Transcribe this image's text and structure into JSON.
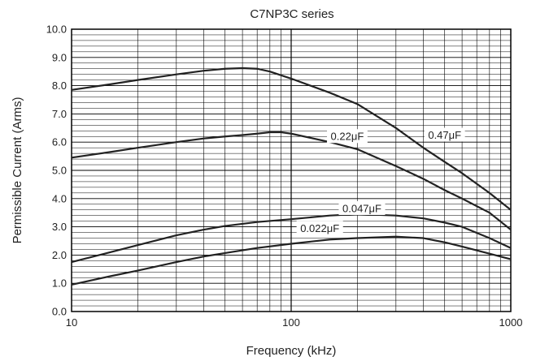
{
  "chart_data": {
    "type": "line",
    "title": "C7NP3C series",
    "xlabel": "Frequency (kHz)",
    "ylabel": "Permissible Current (Arms)",
    "x_scale": "log",
    "xlim": [
      10,
      1000
    ],
    "ylim": [
      0,
      10
    ],
    "grid": true,
    "x_tick_labels": [
      "10",
      "100",
      "1000"
    ],
    "y_tick_labels": [
      "0.0",
      "1.0",
      "2.0",
      "3.0",
      "4.0",
      "5.0",
      "6.0",
      "7.0",
      "8.0",
      "9.0",
      "10.0"
    ],
    "series": [
      {
        "name": "0.47μF",
        "points": [
          [
            10,
            7.85
          ],
          [
            15,
            8.05
          ],
          [
            20,
            8.2
          ],
          [
            30,
            8.4
          ],
          [
            40,
            8.53
          ],
          [
            50,
            8.6
          ],
          [
            60,
            8.62
          ],
          [
            70,
            8.6
          ],
          [
            80,
            8.5
          ],
          [
            100,
            8.25
          ],
          [
            150,
            7.75
          ],
          [
            200,
            7.35
          ],
          [
            300,
            6.5
          ],
          [
            400,
            5.8
          ],
          [
            500,
            5.3
          ],
          [
            600,
            4.9
          ],
          [
            800,
            4.2
          ],
          [
            1000,
            3.6
          ]
        ]
      },
      {
        "name": "0.22μF",
        "points": [
          [
            10,
            5.45
          ],
          [
            15,
            5.65
          ],
          [
            20,
            5.8
          ],
          [
            30,
            6.0
          ],
          [
            40,
            6.13
          ],
          [
            50,
            6.2
          ],
          [
            60,
            6.25
          ],
          [
            70,
            6.3
          ],
          [
            80,
            6.35
          ],
          [
            90,
            6.35
          ],
          [
            100,
            6.3
          ],
          [
            150,
            6.0
          ],
          [
            200,
            5.75
          ],
          [
            300,
            5.15
          ],
          [
            400,
            4.7
          ],
          [
            500,
            4.3
          ],
          [
            600,
            4.0
          ],
          [
            800,
            3.5
          ],
          [
            1000,
            2.9
          ]
        ]
      },
      {
        "name": "0.047μF",
        "points": [
          [
            10,
            1.75
          ],
          [
            15,
            2.1
          ],
          [
            20,
            2.35
          ],
          [
            30,
            2.7
          ],
          [
            40,
            2.9
          ],
          [
            50,
            3.03
          ],
          [
            70,
            3.17
          ],
          [
            100,
            3.27
          ],
          [
            150,
            3.4
          ],
          [
            200,
            3.45
          ],
          [
            300,
            3.4
          ],
          [
            400,
            3.3
          ],
          [
            500,
            3.15
          ],
          [
            600,
            3.0
          ],
          [
            800,
            2.6
          ],
          [
            1000,
            2.25
          ]
        ]
      },
      {
        "name": "0.022μF",
        "points": [
          [
            10,
            0.95
          ],
          [
            15,
            1.25
          ],
          [
            20,
            1.45
          ],
          [
            30,
            1.75
          ],
          [
            40,
            1.95
          ],
          [
            50,
            2.07
          ],
          [
            70,
            2.25
          ],
          [
            100,
            2.4
          ],
          [
            150,
            2.55
          ],
          [
            200,
            2.6
          ],
          [
            300,
            2.65
          ],
          [
            400,
            2.6
          ],
          [
            500,
            2.45
          ],
          [
            600,
            2.3
          ],
          [
            800,
            2.05
          ],
          [
            1000,
            1.85
          ]
        ]
      }
    ],
    "series_label_anchors": [
      {
        "series": 0,
        "x": 500,
        "y": 6.25
      },
      {
        "series": 1,
        "x": 180,
        "y": 6.2
      },
      {
        "series": 2,
        "x": 210,
        "y": 3.65
      },
      {
        "series": 3,
        "x": 135,
        "y": 2.95
      }
    ]
  }
}
